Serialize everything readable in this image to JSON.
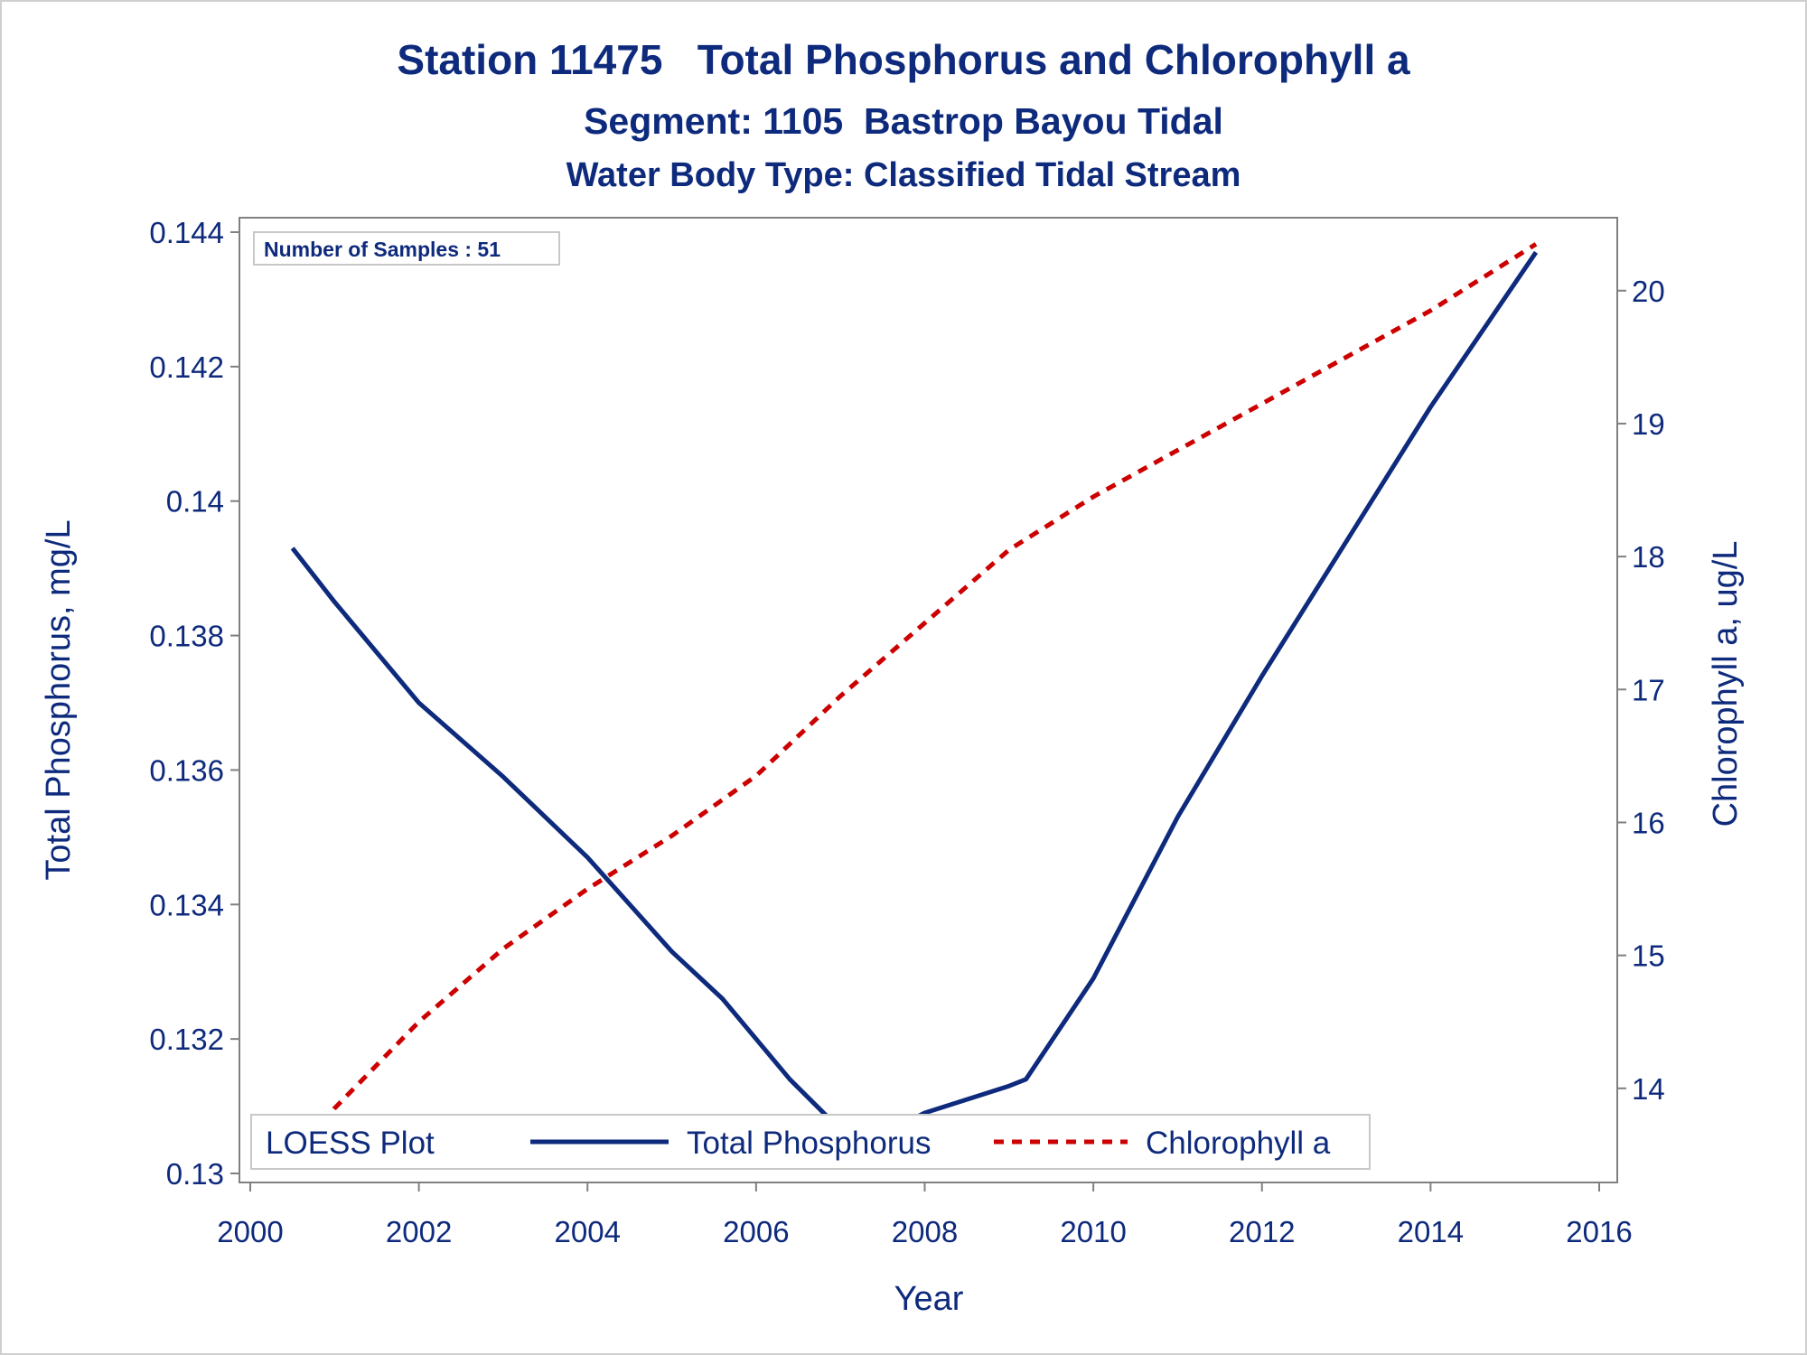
{
  "chart_data": {
    "type": "line",
    "title": "Station 11475   Total Phosphorus and Chlorophyll a",
    "subtitle": "Segment: 1105  Bastrop Bayou Tidal",
    "subtitle2": "Water Body Type: Classified Tidal Stream",
    "xlabel": "Year",
    "ylabel": "Total Phosphorus, mg/L",
    "y2label": "Chlorophyll a, ug/L",
    "xlim": [
      2000,
      2016
    ],
    "ylim": [
      0.13,
      0.144
    ],
    "y2lim": [
      13.36,
      20.44
    ],
    "xticks": [
      "2000",
      "2002",
      "2004",
      "2006",
      "2008",
      "2010",
      "2012",
      "2014",
      "2016"
    ],
    "yticks": [
      "0.13",
      "0.132",
      "0.134",
      "0.136",
      "0.138",
      "0.14",
      "0.142",
      "0.144"
    ],
    "y2ticks": [
      "14",
      "15",
      "16",
      "17",
      "18",
      "19",
      "20"
    ],
    "inset_text": "Number of Samples : 51",
    "legend": {
      "title": "LOESS Plot",
      "position": "bottom-inside",
      "entries": [
        {
          "label": "Total Phosphorus",
          "color": "#0e2a7c",
          "style": "solid"
        },
        {
          "label": "Chlorophyll a",
          "color": "#cc0000",
          "style": "dashed"
        }
      ]
    },
    "series": [
      {
        "name": "Total Phosphorus",
        "axis": "left",
        "color": "#0e2a7c",
        "x": [
          2000.5,
          2001.0,
          2002.0,
          2003.0,
          2004.0,
          2005.0,
          2005.6,
          2006.4,
          2007.2,
          2008.0,
          2009.0,
          2009.2,
          2010.0,
          2011.0,
          2012.0,
          2013.0,
          2014.0,
          2015.25
        ],
        "y": [
          0.1393,
          0.1385,
          0.137,
          0.1359,
          0.1347,
          0.1333,
          0.1326,
          0.1314,
          0.1304,
          0.1309,
          0.1313,
          0.1314,
          0.1329,
          0.1353,
          0.1374,
          0.1394,
          0.1414,
          0.1437
        ]
      },
      {
        "name": "Chlorophyll a",
        "axis": "right",
        "color": "#cc0000",
        "x": [
          2000.5,
          2001.0,
          2002.0,
          2003.0,
          2004.0,
          2005.0,
          2006.0,
          2007.0,
          2008.0,
          2009.0,
          2010.0,
          2011.0,
          2012.0,
          2013.0,
          2014.0,
          2015.25
        ],
        "y": [
          13.4,
          13.85,
          14.5,
          15.05,
          15.5,
          15.9,
          16.35,
          16.95,
          17.5,
          18.05,
          18.45,
          18.8,
          19.15,
          19.5,
          19.85,
          20.35
        ]
      }
    ]
  },
  "colors": {
    "text": "#0e2a7c",
    "axis": "#808080",
    "phosphorus": "#0e2a7c",
    "chlorophyll": "#cc0000"
  }
}
